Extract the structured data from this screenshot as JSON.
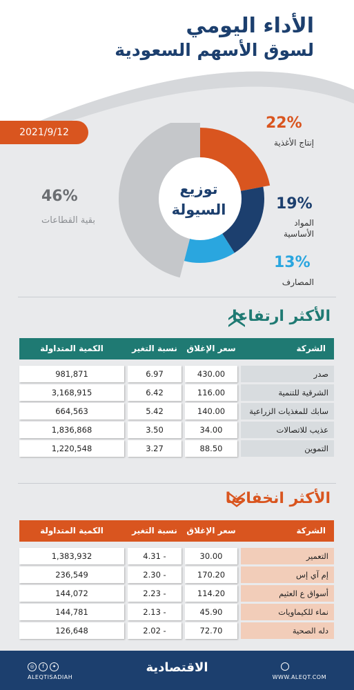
{
  "header": {
    "title_line1": "الأداء اليومي",
    "title_line2": "لسوق الأسهم السعودية",
    "date": "2021/9/12"
  },
  "donut": {
    "center_line1": "توزيع",
    "center_line2": "السيولة",
    "segments": [
      {
        "pct": "22%",
        "label": "إنتاج الأغذية",
        "value": 22,
        "color": "#d9551f"
      },
      {
        "pct": "19%",
        "label_line1": "المواد",
        "label_line2": "الأساسية",
        "value": 19,
        "color": "#1c3f6e"
      },
      {
        "pct": "13%",
        "label": "المصارف",
        "value": 13,
        "color": "#2aa6df"
      },
      {
        "pct": "46%",
        "label": "بقية القطاعات",
        "value": 46,
        "color": "#c5c7ca"
      }
    ]
  },
  "gainers": {
    "title": "الأكثر ارتفاعا",
    "header_color": "#1f7a73",
    "columns": {
      "name": "الشركة",
      "close": "سعر الإغلاق",
      "change": "نسبة التغير %",
      "volume": "الكمية المتداولة"
    },
    "rows": [
      {
        "name": "صدر",
        "close": "430.00",
        "change": "6.97",
        "volume": "981,871"
      },
      {
        "name": "الشرقية للتنمية",
        "close": "116.00",
        "change": "6.42",
        "volume": "3,168,915"
      },
      {
        "name": "سابك للمغذيات الزراعية",
        "close": "140.00",
        "change": "5.42",
        "volume": "664,563"
      },
      {
        "name": "عذيب للاتصالات",
        "close": "34.00",
        "change": "3.50",
        "volume": "1,836,868"
      },
      {
        "name": "التموين",
        "close": "88.50",
        "change": "3.27",
        "volume": "1,220,548"
      }
    ]
  },
  "losers": {
    "title": "الأكثر انخفاضا",
    "header_color": "#d9551f",
    "columns": {
      "name": "الشركة",
      "close": "سعر الإغلاق",
      "change": "نسبة التغير %",
      "volume": "الكمية المتداولة"
    },
    "rows": [
      {
        "name": "التعمير",
        "close": "30.00",
        "change": "4.31 -",
        "volume": "1,383,932"
      },
      {
        "name": "إم آي إس",
        "close": "170.20",
        "change": "2.30 -",
        "volume": "236,549"
      },
      {
        "name": "أسواق ع العثيم",
        "close": "114.20",
        "change": "2.23 -",
        "volume": "144,072"
      },
      {
        "name": "نماء للكيماويات",
        "close": "45.90",
        "change": "2.13 -",
        "volume": "144,781"
      },
      {
        "name": "دله الصحية",
        "close": "72.70",
        "change": "2.02 -",
        "volume": "126,648"
      }
    ]
  },
  "footer": {
    "logo": "الاقتصادية",
    "handle": "ALEQTISADIAH",
    "site": "WWW.ALEQT.COM",
    "icons": [
      "instagram-icon",
      "facebook-icon",
      "twitter-icon",
      "globe-icon"
    ]
  }
}
